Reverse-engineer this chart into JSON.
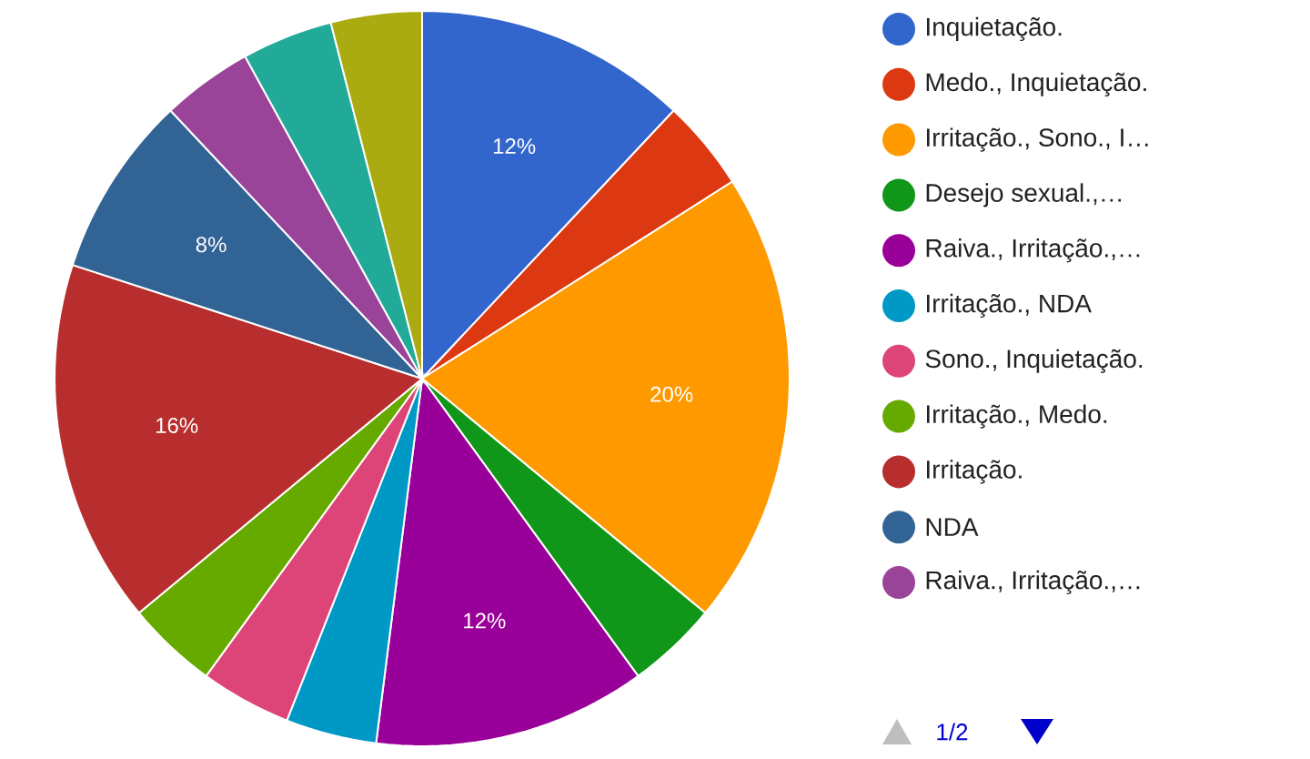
{
  "chart_data": {
    "type": "pie",
    "categories": [
      "Inquietação.",
      "Medo., Inquietação.",
      "Irritação., Sono., I…",
      "Desejo sexual.,…",
      "Raiva., Irritação.,…",
      "Irritação., NDA",
      "Sono., Inquietação.",
      "Irritação., Medo.",
      "Irritação.",
      "NDA",
      "Raiva., Irritação.,…",
      null,
      null
    ],
    "values": [
      12,
      4,
      20,
      4,
      12,
      4,
      4,
      4,
      16,
      8,
      4,
      4,
      4
    ],
    "value_labels": [
      "12%",
      null,
      "20%",
      null,
      "12%",
      null,
      null,
      null,
      "16%",
      "8%",
      null,
      null,
      null
    ],
    "colors": [
      "#3366cc",
      "#dc3912",
      "#ff9900",
      "#109618",
      "#990099",
      "#0099c6",
      "#dd4477",
      "#66aa00",
      "#b82e2e",
      "#316395",
      "#994499",
      "#22aa99",
      "#aaaa11"
    ],
    "legend": "right",
    "annotations": [
      "1/2"
    ]
  }
}
